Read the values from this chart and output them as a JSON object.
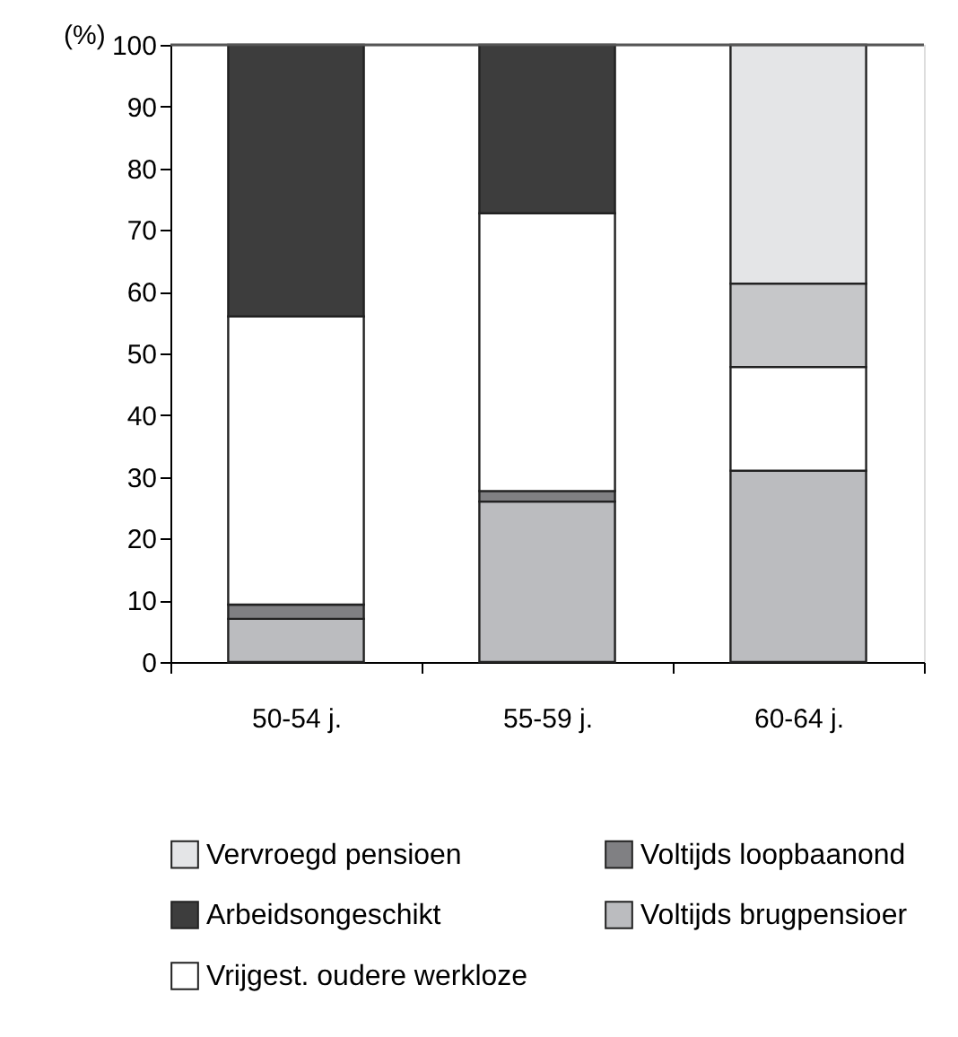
{
  "chart_data": {
    "type": "bar",
    "stacked": true,
    "ylabel": "(%)",
    "categories": [
      "50-54 j.",
      "55-59 j.",
      "60-64 j."
    ],
    "series": [
      {
        "name": "Voltijds brugpensioer",
        "color": "#bbbcbf",
        "values": [
          7,
          26,
          31
        ]
      },
      {
        "name": "Voltijds loopbaanond",
        "color": "#808083",
        "values": [
          2.3,
          1.7,
          0
        ]
      },
      {
        "name": "Vrijgest. oudere werkloze",
        "color": "#ffffff",
        "values": [
          46.7,
          45,
          16.8
        ]
      },
      {
        "color": "#c6c7c9",
        "values": [
          0,
          0,
          13.5
        ]
      },
      {
        "name": "Arbeidsongeschikt",
        "color": "#3d3d3d",
        "values": [
          44,
          27.3,
          0
        ]
      },
      {
        "name": "Vervroegd pensioen",
        "color": "#e4e5e7",
        "values": [
          0,
          0,
          38.7
        ]
      }
    ],
    "ylim": [
      0,
      100
    ],
    "yticks": [
      0,
      10,
      20,
      30,
      40,
      50,
      60,
      70,
      80,
      90,
      100
    ],
    "grid": false,
    "legend": "bottom"
  }
}
